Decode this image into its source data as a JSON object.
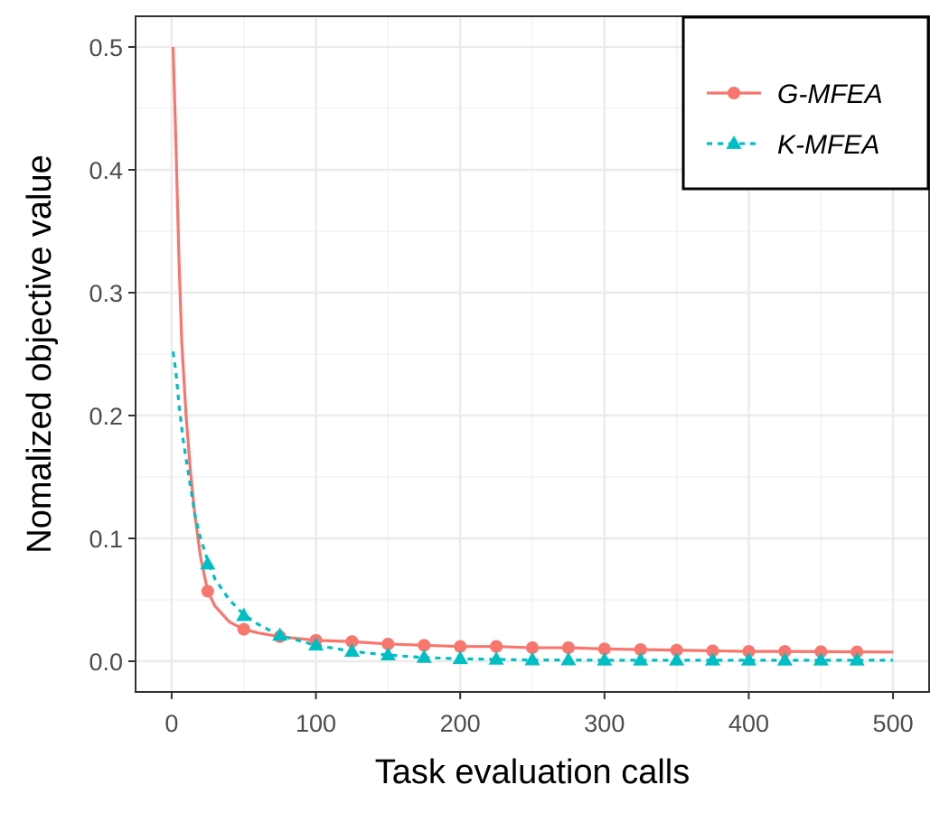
{
  "chart_data": {
    "type": "line",
    "title": "",
    "xlabel": "Task evaluation calls",
    "ylabel": "Nomalized objective value",
    "xlim": [
      -25,
      525
    ],
    "ylim": [
      -0.025,
      0.525
    ],
    "xticks": [
      0,
      100,
      200,
      300,
      400,
      500
    ],
    "xtick_labels": [
      "0",
      "100",
      "200",
      "300",
      "400",
      "500"
    ],
    "yticks": [
      0.0,
      0.1,
      0.2,
      0.3,
      0.4,
      0.5
    ],
    "ytick_labels": [
      "0.0",
      "0.1",
      "0.2",
      "0.3",
      "0.4",
      "0.5"
    ],
    "grid": true,
    "legend_position": "top-right",
    "series": [
      {
        "name": "G-MFEA",
        "color": "#F8766D",
        "line_style": "solid",
        "marker": "circle",
        "line_x": [
          1,
          3,
          5,
          7,
          10,
          13,
          16,
          20,
          25,
          30,
          40,
          50,
          60,
          75,
          100,
          125,
          150,
          175,
          200,
          225,
          250,
          275,
          300,
          325,
          350,
          375,
          400,
          425,
          450,
          475,
          500
        ],
        "line_y": [
          0.5,
          0.42,
          0.33,
          0.26,
          0.2,
          0.155,
          0.12,
          0.085,
          0.057,
          0.045,
          0.032,
          0.026,
          0.023,
          0.02,
          0.017,
          0.016,
          0.014,
          0.013,
          0.012,
          0.012,
          0.011,
          0.011,
          0.01,
          0.0095,
          0.009,
          0.0085,
          0.008,
          0.008,
          0.0078,
          0.0076,
          0.0075
        ],
        "marker_x": [
          25,
          50,
          75,
          100,
          125,
          150,
          175,
          200,
          225,
          250,
          275,
          300,
          325,
          350,
          375,
          400,
          425,
          450,
          475
        ],
        "marker_y": [
          0.057,
          0.026,
          0.02,
          0.017,
          0.016,
          0.014,
          0.013,
          0.012,
          0.012,
          0.011,
          0.011,
          0.01,
          0.0095,
          0.009,
          0.0085,
          0.008,
          0.008,
          0.0078,
          0.0076
        ]
      },
      {
        "name": "K-MFEA",
        "color": "#00BFC4",
        "line_style": "dashed",
        "marker": "triangle",
        "line_x": [
          1,
          3,
          5,
          8,
          12,
          16,
          20,
          25,
          30,
          40,
          50,
          60,
          75,
          100,
          125,
          150,
          175,
          200,
          225,
          250,
          275,
          300,
          325,
          350,
          375,
          400,
          425,
          450,
          475,
          500
        ],
        "line_y": [
          0.252,
          0.235,
          0.21,
          0.18,
          0.15,
          0.12,
          0.1,
          0.082,
          0.067,
          0.05,
          0.038,
          0.03,
          0.021,
          0.013,
          0.008,
          0.005,
          0.003,
          0.002,
          0.0015,
          0.001,
          0.001,
          0.0008,
          0.0008,
          0.0008,
          0.0008,
          0.0008,
          0.0008,
          0.0008,
          0.0008,
          0.0008
        ],
        "marker_x": [
          25,
          50,
          75,
          100,
          125,
          150,
          175,
          200,
          225,
          250,
          275,
          300,
          325,
          350,
          375,
          400,
          425,
          450,
          475
        ],
        "marker_y": [
          0.079,
          0.037,
          0.021,
          0.013,
          0.008,
          0.005,
          0.003,
          0.002,
          0.0015,
          0.001,
          0.001,
          0.0008,
          0.0008,
          0.0008,
          0.0008,
          0.0008,
          0.0008,
          0.0008,
          0.0008
        ]
      }
    ]
  }
}
